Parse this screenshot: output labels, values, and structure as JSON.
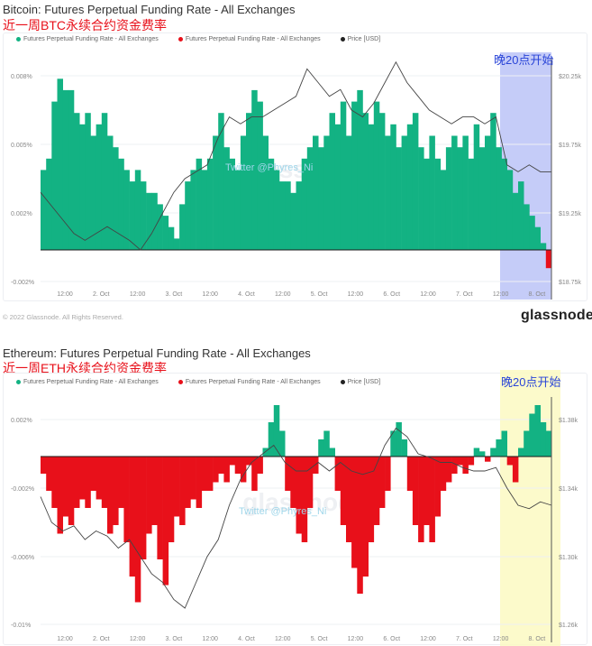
{
  "colors": {
    "positive": "#13b283",
    "negative": "#e8101a",
    "price": "#444444",
    "btc_highlight": "#7e8ff0",
    "eth_highlight": "#fbf9c2",
    "annotation": "#2a45d8"
  },
  "footer": {
    "copyright": "© 2022 Glassnode. All Rights Reserved.",
    "logo": "glassnode"
  },
  "chart_data": [
    {
      "type": "bar",
      "title": "Bitcoin: Futures Perpetual Funding Rate - All Exchanges",
      "subtitle": "近一周BTC永续合约资金费率",
      "legend": [
        "Futures Perpetual Funding Rate - All Exchanges",
        "Futures Perpetual Funding Rate - All Exchanges",
        "Price [USD]"
      ],
      "watermark": "Twitter @Phyres_Ni",
      "annotation": "晚20点开始",
      "x_ticks": [
        "12:00",
        "2. Oct",
        "12:00",
        "3. Oct",
        "12:00",
        "4. Oct",
        "12:00",
        "5. Oct",
        "12:00",
        "6. Oct",
        "12:00",
        "7. Oct",
        "12:00",
        "8. Oct"
      ],
      "y_ticks": [
        "0.008%",
        "0.005%",
        "0.002%",
        "-0.002%"
      ],
      "y2_ticks": [
        "$20.25k",
        "$19.75k",
        "$19.25k",
        "$18.75k"
      ],
      "funding_interval_hours": 2,
      "funding_rate_pct": [
        0.0035,
        0.004,
        0.0065,
        0.0075,
        0.007,
        0.007,
        0.006,
        0.0055,
        0.006,
        0.005,
        0.0055,
        0.006,
        0.005,
        0.0045,
        0.004,
        0.0035,
        0.003,
        0.0035,
        0.003,
        0.0025,
        0.0025,
        0.002,
        0.0015,
        0.001,
        0.0005,
        0.002,
        0.003,
        0.0035,
        0.004,
        0.0035,
        0.004,
        0.005,
        0.006,
        0.0045,
        0.004,
        0.0035,
        0.005,
        0.006,
        0.007,
        0.0065,
        0.005,
        0.004,
        0.0035,
        0.003,
        0.003,
        0.0025,
        0.003,
        0.004,
        0.0045,
        0.005,
        0.0045,
        0.005,
        0.006,
        0.0055,
        0.0065,
        0.005,
        0.0065,
        0.007,
        0.006,
        0.0055,
        0.0065,
        0.006,
        0.005,
        0.0055,
        0.0045,
        0.005,
        0.0055,
        0.006,
        0.0045,
        0.004,
        0.005,
        0.004,
        0.0035,
        0.0045,
        0.005,
        0.0045,
        0.005,
        0.004,
        0.0055,
        0.0045,
        0.005,
        0.006,
        0.0045,
        0.004,
        0.0035,
        0.0025,
        0.003,
        0.002,
        0.0015,
        0.001,
        0.0003,
        -0.0008
      ],
      "price_interval_hours": 4,
      "price_usd_k": [
        19.4,
        19.3,
        19.2,
        19.1,
        19.05,
        19.1,
        19.15,
        19.1,
        19.05,
        18.98,
        19.1,
        19.25,
        19.4,
        19.5,
        19.55,
        19.6,
        19.8,
        19.95,
        19.9,
        19.95,
        19.95,
        20.0,
        20.05,
        20.1,
        20.3,
        20.2,
        20.1,
        20.15,
        20.0,
        19.95,
        20.05,
        20.2,
        20.35,
        20.2,
        20.1,
        20.0,
        19.95,
        19.9,
        19.95,
        19.95,
        19.9,
        19.95,
        19.6,
        19.55,
        19.6,
        19.55,
        19.55
      ]
    },
    {
      "type": "bar",
      "title": "Ethereum: Futures Perpetual Funding Rate - All Exchanges",
      "subtitle": "近一周ETH永续合约资金费率",
      "legend": [
        "Futures Perpetual Funding Rate - All Exchanges",
        "Futures Perpetual Funding Rate - All Exchanges",
        "Price [USD]"
      ],
      "watermark": "Twitter @Phyres_Ni",
      "annotation": "晚20点开始",
      "x_ticks": [
        "12:00",
        "2. Oct",
        "12:00",
        "3. Oct",
        "12:00",
        "4. Oct",
        "12:00",
        "5. Oct",
        "12:00",
        "6. Oct",
        "12:00",
        "7. Oct",
        "12:00",
        "8. Oct"
      ],
      "y_ticks": [
        "0.002%",
        "-0.002%",
        "-0.006%",
        "-0.01%"
      ],
      "y2_ticks": [
        "$1.38k",
        "$1.34k",
        "$1.30k",
        "$1.26k"
      ],
      "funding_interval_hours": 2,
      "funding_rate_pct": [
        -0.001,
        -0.002,
        -0.003,
        -0.0045,
        -0.0035,
        -0.004,
        -0.003,
        -0.0025,
        -0.003,
        -0.002,
        -0.0025,
        -0.003,
        -0.0045,
        -0.004,
        -0.003,
        -0.005,
        -0.007,
        -0.0085,
        -0.006,
        -0.0045,
        -0.004,
        -0.006,
        -0.0075,
        -0.005,
        -0.0035,
        -0.004,
        -0.003,
        -0.0025,
        -0.003,
        -0.002,
        -0.002,
        -0.0015,
        -0.001,
        -0.0015,
        -0.0005,
        -0.001,
        -0.0015,
        -0.0005,
        -0.002,
        -0.001,
        0.0005,
        0.002,
        0.003,
        0.0015,
        -0.002,
        -0.003,
        -0.0045,
        -0.005,
        -0.003,
        -0.001,
        0.001,
        0.0015,
        0.0005,
        -0.002,
        -0.004,
        -0.005,
        -0.0065,
        -0.008,
        -0.007,
        -0.005,
        -0.004,
        -0.003,
        -0.002,
        0.0015,
        0.002,
        0.001,
        -0.002,
        -0.004,
        -0.005,
        -0.004,
        -0.005,
        -0.0035,
        -0.002,
        -0.0015,
        -0.001,
        -0.0005,
        -0.001,
        -0.0005,
        0.0005,
        0.0003,
        -0.0003,
        0.0005,
        0.001,
        0.0015,
        -0.0005,
        -0.0015,
        0.0005,
        0.0015,
        0.0025,
        0.003,
        0.002,
        0.0015
      ],
      "price_interval_hours": 4,
      "price_usd_k": [
        1.335,
        1.32,
        1.315,
        1.318,
        1.31,
        1.315,
        1.312,
        1.305,
        1.31,
        1.3,
        1.29,
        1.285,
        1.275,
        1.27,
        1.285,
        1.3,
        1.31,
        1.33,
        1.345,
        1.355,
        1.36,
        1.365,
        1.355,
        1.35,
        1.35,
        1.355,
        1.35,
        1.355,
        1.35,
        1.348,
        1.35,
        1.365,
        1.375,
        1.37,
        1.36,
        1.358,
        1.355,
        1.355,
        1.352,
        1.35,
        1.35,
        1.352,
        1.34,
        1.33,
        1.328,
        1.332,
        1.33
      ]
    }
  ]
}
